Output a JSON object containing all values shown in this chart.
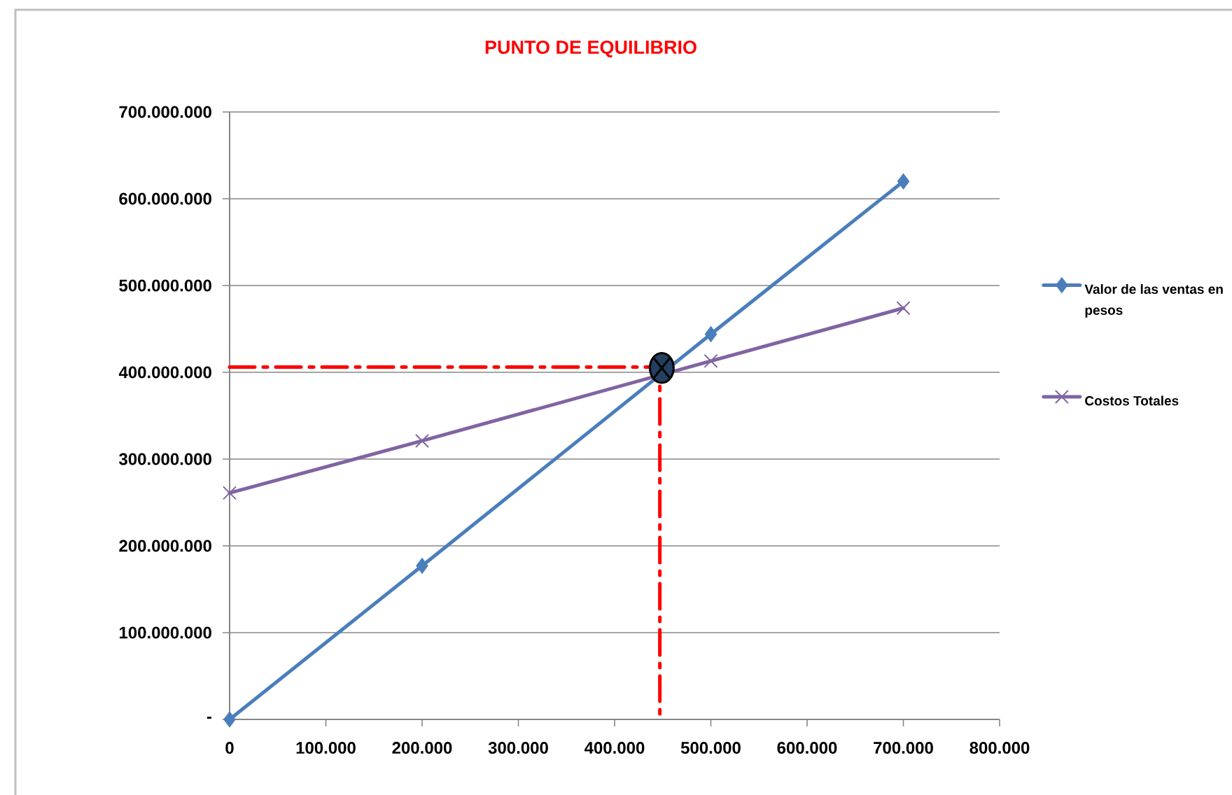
{
  "chart_data": {
    "type": "line",
    "title": "PUNTO DE EQUILIBRIO",
    "x": [
      0,
      200000,
      500000,
      700000
    ],
    "xlim": [
      0,
      800000
    ],
    "xticks": [
      0,
      {
        "value": 100000,
        "label": "100.000"
      },
      {
        "value": 200000,
        "label": "200.000"
      },
      {
        "value": 300000,
        "label": "300.000"
      },
      {
        "value": 400000,
        "label": "400.000"
      },
      {
        "value": 500000,
        "label": "500.000"
      },
      {
        "value": 600000,
        "label": "600.000"
      },
      {
        "value": 700000,
        "label": "700.000"
      },
      {
        "value": 800000,
        "label": "800.000"
      }
    ],
    "ylim": [
      0,
      700000000
    ],
    "yticks": [
      {
        "value": 0,
        "label": "-"
      },
      {
        "value": 100000000,
        "label": "100.000.000"
      },
      {
        "value": 200000000,
        "label": "200.000.000"
      },
      {
        "value": 300000000,
        "label": "300.000.000"
      },
      {
        "value": 400000000,
        "label": "400.000.000"
      },
      {
        "value": 500000000,
        "label": "500.000.000"
      },
      {
        "value": 600000000,
        "label": "600.000.000"
      },
      {
        "value": 700000000,
        "label": "700.000.000"
      }
    ],
    "grid": "y",
    "legend": "right",
    "series": [
      {
        "name": "Valor de las ventas en pesos",
        "color": "#4a7ebb",
        "marker": "diamond",
        "values": [
          0,
          177000000,
          444000000,
          620000000
        ]
      },
      {
        "name": "Costos Totales",
        "color": "#8064a2",
        "marker": "cross",
        "values": [
          261000000,
          321000000,
          413000000,
          474000000
        ]
      },
      {
        "type": "line",
        "color": "#ff0000",
        "line_style": "dashdot",
        "marker": "none",
        "x": [
          0,
          447000,
          447000
        ],
        "values": [
          406000000,
          406000000,
          0
        ]
      },
      {
        "type": "scatter",
        "color": "#243f60",
        "marker": "circle",
        "x": [
          449000
        ],
        "values": [
          405000000
        ]
      }
    ]
  }
}
